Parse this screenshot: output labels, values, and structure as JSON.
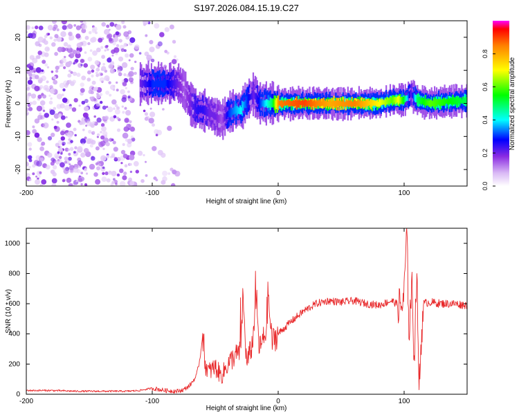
{
  "figure": {
    "title": "S197.2026.084.15.19.C27"
  },
  "chart_data": [
    {
      "type": "heatmap",
      "title": "S197.2026.084.15.19.C27",
      "xlabel": "Height of straight line (km)",
      "ylabel": "Frequency (Hz)",
      "xlim": [
        -200,
        150
      ],
      "ylim": [
        -25,
        25
      ],
      "x_ticks": [
        "-200",
        "-100",
        "0",
        "100"
      ],
      "x_tick_values": [
        -200,
        -100,
        0,
        100
      ],
      "y_ticks": [
        "20",
        "10",
        "0",
        "-10",
        "-20"
      ],
      "y_tick_values": [
        20,
        10,
        0,
        -10,
        -20
      ],
      "colorbar": {
        "label": "Normalized spectral amplitude",
        "range": [
          0,
          1
        ],
        "ticks": [
          "0.0",
          "0.2",
          "0.4",
          "0.6",
          "0.8"
        ],
        "tick_values": [
          0.0,
          0.2,
          0.4,
          0.6,
          0.8
        ]
      },
      "ridge": {
        "description_points_x": [
          -110,
          -100,
          -90,
          -80,
          -75,
          -70,
          -65,
          -60,
          -55,
          -50,
          -45,
          -40,
          -35,
          -30,
          -25,
          -20,
          -15,
          -10,
          -5,
          0,
          20,
          40,
          60,
          80,
          90,
          95,
          100,
          105,
          110,
          120,
          150
        ],
        "frequency_hz": [
          6,
          6,
          6,
          6,
          4,
          0,
          -2,
          -2,
          -3,
          -4,
          -5,
          -3,
          -2,
          -2,
          1,
          3,
          0,
          0,
          0,
          0,
          0,
          0,
          0,
          0,
          1,
          1,
          1,
          3,
          1,
          0,
          1
        ],
        "amplitude": [
          0.2,
          0.3,
          0.3,
          0.2,
          0.15,
          0.2,
          0.25,
          0.25,
          0.2,
          0.2,
          0.15,
          0.3,
          0.35,
          0.4,
          0.3,
          0.2,
          0.3,
          0.4,
          0.5,
          0.85,
          0.9,
          0.8,
          0.85,
          0.7,
          0.6,
          0.7,
          0.5,
          0.2,
          0.5,
          0.6,
          0.5
        ]
      },
      "noise_region_x": [
        -200,
        -80
      ]
    },
    {
      "type": "line",
      "xlabel": "Height of straight line (km)",
      "ylabel": "SNR (10 * v/v)",
      "xlim": [
        -200,
        150
      ],
      "ylim": [
        0,
        1100
      ],
      "x_ticks": [
        "-200",
        "-100",
        "0",
        "100"
      ],
      "x_tick_values": [
        -200,
        -100,
        0,
        100
      ],
      "y_ticks": [
        "0",
        "200",
        "400",
        "600",
        "800",
        "1000"
      ],
      "y_tick_values": [
        0,
        200,
        400,
        600,
        800,
        1000
      ],
      "series": [
        {
          "name": "SNR",
          "color": "#e8282a",
          "x": [
            -200,
            -180,
            -160,
            -140,
            -120,
            -110,
            -100,
            -90,
            -80,
            -75,
            -70,
            -65,
            -62,
            -60,
            -58,
            -55,
            -50,
            -45,
            -40,
            -35,
            -30,
            -28,
            -25,
            -20,
            -18,
            -15,
            -10,
            -8,
            -5,
            0,
            10,
            20,
            30,
            40,
            50,
            60,
            70,
            80,
            90,
            98,
            100,
            102,
            104,
            106,
            108,
            110,
            112,
            115,
            120,
            130,
            140,
            150
          ],
          "values": [
            25,
            25,
            20,
            20,
            20,
            25,
            40,
            25,
            20,
            30,
            60,
            120,
            240,
            400,
            200,
            150,
            180,
            120,
            200,
            250,
            280,
            640,
            200,
            350,
            690,
            300,
            400,
            650,
            350,
            400,
            480,
            550,
            600,
            620,
            610,
            620,
            600,
            590,
            620,
            580,
            650,
            1100,
            400,
            750,
            250,
            800,
            50,
            600,
            610,
            600,
            600,
            590
          ]
        }
      ]
    }
  ]
}
